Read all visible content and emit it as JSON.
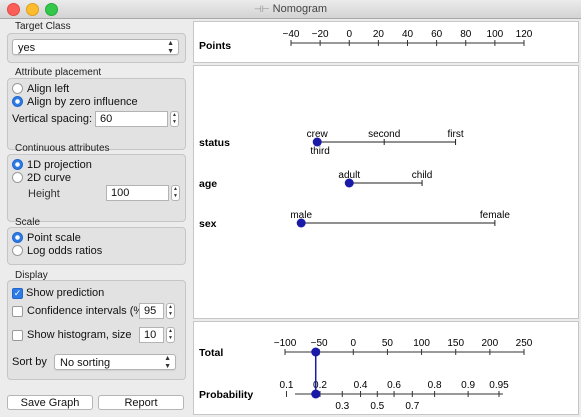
{
  "window": {
    "title": "Nomogram"
  },
  "target_class": {
    "section": "Target Class",
    "value": "yes"
  },
  "attribute_placement": {
    "section": "Attribute placement",
    "options": [
      "Align left",
      "Align by zero influence"
    ],
    "selected": 1,
    "spacing_label": "Vertical spacing:",
    "spacing_value": "60"
  },
  "continuous_attributes": {
    "section": "Continuous attributes",
    "options": [
      "1D projection",
      "2D curve"
    ],
    "selected": 0,
    "height_label": "Height",
    "height_value": "100"
  },
  "scale": {
    "section": "Scale",
    "options": [
      "Point scale",
      "Log odds ratios"
    ],
    "selected": 0
  },
  "display": {
    "section": "Display",
    "show_prediction": "Show prediction",
    "show_prediction_checked": true,
    "confidence_label": "Confidence intervals (%):",
    "confidence_value": "95",
    "confidence_checked": false,
    "histogram_label": "Show histogram, size",
    "histogram_value": "10",
    "histogram_checked": false,
    "sort_label": "Sort by",
    "sort_value": "No sorting"
  },
  "buttons": {
    "save": "Save Graph",
    "report": "Report"
  },
  "nomogram": {
    "points_label": "Points",
    "points_ticks": [
      "−40",
      "−20",
      "0",
      "20",
      "40",
      "60",
      "80",
      "100",
      "120"
    ],
    "points_range": [
      -40,
      120
    ],
    "attributes": [
      {
        "name": "status",
        "values": [
          {
            "label": "crew",
            "points": -22,
            "pos": "above"
          },
          {
            "label": "third",
            "points": -20,
            "pos": "below"
          },
          {
            "label": "second",
            "points": 24,
            "pos": "above"
          },
          {
            "label": "first",
            "points": 73,
            "pos": "above"
          }
        ],
        "marker": -22
      },
      {
        "name": "age",
        "values": [
          {
            "label": "adult",
            "points": 0,
            "pos": "above"
          },
          {
            "label": "child",
            "points": 50,
            "pos": "above"
          }
        ],
        "marker": 0
      },
      {
        "name": "sex",
        "values": [
          {
            "label": "male",
            "points": -33,
            "pos": "above"
          },
          {
            "label": "female",
            "points": 100,
            "pos": "above"
          }
        ],
        "marker": -33
      }
    ],
    "total_label": "Total",
    "total_ticks": [
      "−100",
      "−50",
      "0",
      "50",
      "100",
      "150",
      "200",
      "250"
    ],
    "total_range": [
      -100,
      250
    ],
    "total_marker": -55,
    "probability_label": "Probability",
    "prob_ticks_top": [
      "0.1",
      "0.2",
      "0.4",
      "0.6",
      "0.8",
      "0.9",
      "0.95"
    ],
    "prob_ticks_bottom": [
      "0.3",
      "0.5",
      "0.7"
    ]
  },
  "colors": {
    "marker": "#1a1aa8",
    "accent": "#2d7be7"
  }
}
